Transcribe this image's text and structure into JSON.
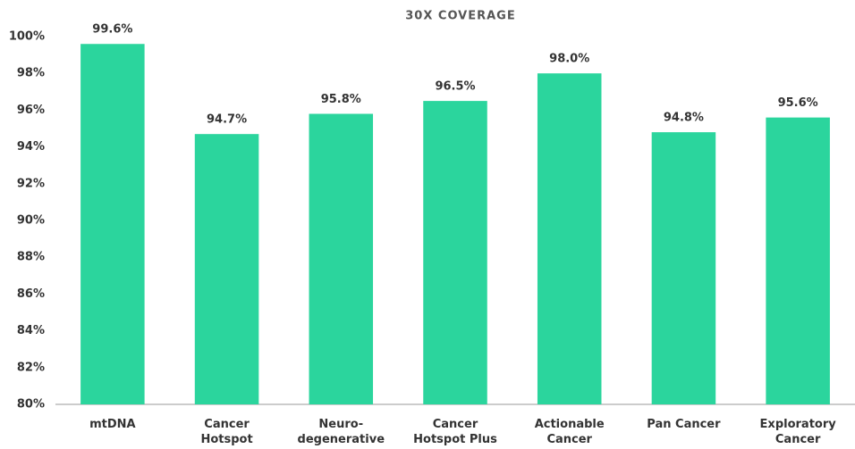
{
  "chart_data": {
    "type": "bar",
    "title": "30X COVERAGE",
    "categories": [
      "mtDNA",
      "Cancer Hotspot",
      "Neuro-degenerative",
      "Cancer Hotspot Plus",
      "Actionable Cancer",
      "Pan Cancer",
      "Exploratory Cancer"
    ],
    "values": [
      99.6,
      94.7,
      95.8,
      96.5,
      98.0,
      94.8,
      95.6
    ],
    "value_labels": [
      "99.6%",
      "94.7%",
      "95.8%",
      "96.5%",
      "98.0%",
      "94.8%",
      "95.6%"
    ],
    "color": "#2bd59d",
    "ylim": [
      80,
      100
    ],
    "yticks": [
      {
        "value": 80,
        "label": "80%"
      },
      {
        "value": 82,
        "label": "82%"
      },
      {
        "value": 84,
        "label": "84%"
      },
      {
        "value": 86,
        "label": "86%"
      },
      {
        "value": 88,
        "label": "88%"
      },
      {
        "value": 90,
        "label": "90%"
      },
      {
        "value": 92,
        "label": "92%"
      },
      {
        "value": 94,
        "label": "94%"
      },
      {
        "value": 96,
        "label": "96%"
      },
      {
        "value": 98,
        "label": "98%"
      },
      {
        "value": 100,
        "label": "100%"
      }
    ],
    "grid": false
  }
}
